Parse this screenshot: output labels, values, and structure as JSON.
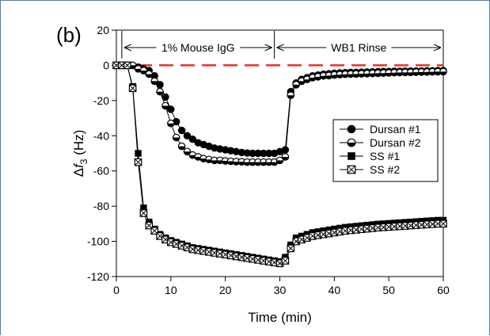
{
  "panel_label": "(b)",
  "chart_data": {
    "type": "line",
    "xlabel": "Time (min)",
    "ylabel": "Δf3 (Hz)",
    "xlim": [
      0,
      60
    ],
    "ylim": [
      -120,
      20
    ],
    "xticks": [
      0,
      10,
      20,
      30,
      40,
      50,
      60
    ],
    "yticks": [
      20,
      0,
      -20,
      -40,
      -60,
      -80,
      -100,
      -120
    ],
    "grid": false,
    "legend_position": "right",
    "reference_line": {
      "y": 0,
      "color": "#e8302a",
      "style": "dashed"
    },
    "annotations": [
      {
        "text": "1% Mouse IgG",
        "x_start": 1,
        "x_end": 29
      },
      {
        "text": "WB1 Rinse",
        "x_start": 29,
        "x_end": 60
      }
    ],
    "series": [
      {
        "name": "Dursan #1",
        "marker": "filled-circle",
        "x": [
          0,
          1,
          2,
          3,
          4,
          5,
          6,
          7,
          8,
          9,
          10,
          11,
          12,
          13,
          14,
          15,
          16,
          17,
          18,
          19,
          20,
          21,
          22,
          23,
          24,
          25,
          26,
          27,
          28,
          29,
          30,
          31,
          32,
          33,
          34,
          35,
          36,
          37,
          38,
          39,
          40,
          41,
          42,
          43,
          44,
          45,
          46,
          47,
          48,
          49,
          50,
          51,
          52,
          53,
          54,
          55,
          56,
          57,
          58,
          59,
          60
        ],
        "y": [
          0,
          0,
          0,
          0,
          -1,
          -2,
          -3,
          -6,
          -11,
          -18,
          -25,
          -32,
          -37,
          -40,
          -42,
          -44,
          -45,
          -46,
          -47,
          -47.5,
          -48,
          -48.5,
          -49,
          -49.5,
          -49.8,
          -50,
          -50,
          -50,
          -50,
          -50,
          -49,
          -48,
          -15,
          -10,
          -8,
          -7,
          -6,
          -5.5,
          -5,
          -4.8,
          -4.5,
          -4.3,
          -4.2,
          -4,
          -4,
          -3.9,
          -3.8,
          -3.7,
          -3.6,
          -3.5,
          -3.5,
          -3.4,
          -3.4,
          -3.3,
          -3.3,
          -3.2,
          -3.2,
          -3.1,
          -3.1,
          -3,
          -3
        ]
      },
      {
        "name": "Dursan #2",
        "marker": "half-filled-circle",
        "x": [
          0,
          1,
          2,
          3,
          4,
          5,
          6,
          7,
          8,
          9,
          10,
          11,
          12,
          13,
          14,
          15,
          16,
          17,
          18,
          19,
          20,
          21,
          22,
          23,
          24,
          25,
          26,
          27,
          28,
          29,
          30,
          31,
          32,
          33,
          34,
          35,
          36,
          37,
          38,
          39,
          40,
          41,
          42,
          43,
          44,
          45,
          46,
          47,
          48,
          49,
          50,
          51,
          52,
          53,
          54,
          55,
          56,
          57,
          58,
          59,
          60
        ],
        "y": [
          0,
          0,
          0,
          0,
          -2,
          -3,
          -5,
          -9,
          -15,
          -23,
          -33,
          -41,
          -46,
          -49,
          -51,
          -52,
          -53,
          -53.5,
          -54,
          -54,
          -54.3,
          -54.5,
          -54.7,
          -54.8,
          -55,
          -55,
          -55,
          -55,
          -55,
          -55,
          -54,
          -52,
          -17,
          -11,
          -9,
          -8,
          -7,
          -6.5,
          -6,
          -5.8,
          -5.5,
          -5.3,
          -5.1,
          -5,
          -4.9,
          -4.8,
          -4.7,
          -4.6,
          -4.5,
          -4.4,
          -4.3,
          -4.2,
          -4.1,
          -4,
          -4,
          -3.9,
          -3.8,
          -3.8,
          -3.7,
          -3.6,
          -3.6
        ]
      },
      {
        "name": "SS #1",
        "marker": "filled-square",
        "x": [
          0,
          1,
          2,
          3,
          4,
          5,
          6,
          7,
          8,
          9,
          10,
          11,
          12,
          13,
          14,
          15,
          16,
          17,
          18,
          19,
          20,
          21,
          22,
          23,
          24,
          25,
          26,
          27,
          28,
          29,
          30,
          31,
          32,
          33,
          34,
          35,
          36,
          37,
          38,
          39,
          40,
          41,
          42,
          43,
          44,
          45,
          46,
          47,
          48,
          49,
          50,
          51,
          52,
          53,
          54,
          55,
          56,
          57,
          58,
          59,
          60
        ],
        "y": [
          0,
          0,
          0,
          -12,
          -50,
          -81,
          -89,
          -93,
          -96,
          -98,
          -99.5,
          -100.5,
          -101.5,
          -102.5,
          -103.5,
          -104,
          -104.5,
          -105,
          -105.5,
          -106,
          -106.5,
          -107,
          -107.5,
          -108,
          -108.5,
          -109,
          -109.5,
          -110,
          -110.5,
          -111,
          -111.5,
          -109,
          -102,
          -98,
          -97,
          -96,
          -95,
          -94.5,
          -94,
          -93.5,
          -93,
          -92.5,
          -92,
          -91.7,
          -91.4,
          -91.1,
          -90.8,
          -90.5,
          -90.2,
          -90,
          -89.8,
          -89.6,
          -89.4,
          -89.2,
          -89,
          -88.8,
          -88.6,
          -88.4,
          -88.2,
          -88,
          -88
        ]
      },
      {
        "name": "SS #2",
        "marker": "crossed-square",
        "x": [
          0,
          1,
          2,
          3,
          4,
          5,
          6,
          7,
          8,
          9,
          10,
          11,
          12,
          13,
          14,
          15,
          16,
          17,
          18,
          19,
          20,
          21,
          22,
          23,
          24,
          25,
          26,
          27,
          28,
          29,
          30,
          31,
          32,
          33,
          34,
          35,
          36,
          37,
          38,
          39,
          40,
          41,
          42,
          43,
          44,
          45,
          46,
          47,
          48,
          49,
          50,
          51,
          52,
          53,
          54,
          55,
          56,
          57,
          58,
          59,
          60
        ],
        "y": [
          0,
          0,
          0,
          -13,
          -55,
          -84,
          -91,
          -94,
          -97,
          -99,
          -100.5,
          -101.5,
          -102.5,
          -103.5,
          -104.5,
          -105,
          -105.5,
          -106,
          -106.5,
          -107,
          -107.5,
          -108,
          -108.5,
          -109,
          -109.5,
          -110,
          -110.5,
          -111,
          -111.5,
          -112,
          -112.5,
          -111,
          -104,
          -100,
          -99,
          -98,
          -97,
          -96.5,
          -96,
          -95.5,
          -95,
          -94.5,
          -94,
          -93.7,
          -93.4,
          -93.1,
          -92.8,
          -92.5,
          -92.2,
          -92,
          -91.8,
          -91.6,
          -91.4,
          -91.2,
          -91,
          -90.8,
          -90.6,
          -90.4,
          -90.2,
          -90,
          -90
        ]
      }
    ]
  }
}
